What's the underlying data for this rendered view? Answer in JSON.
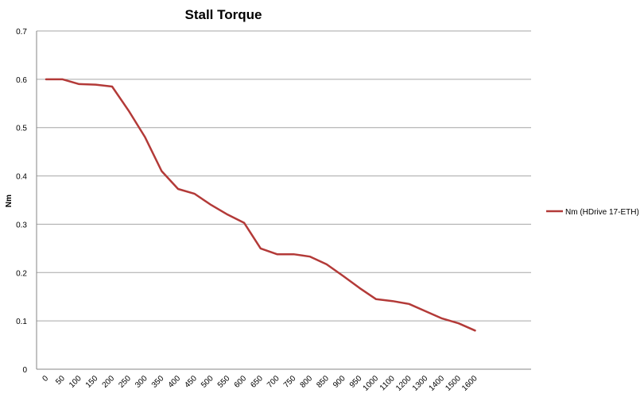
{
  "chart_data": {
    "type": "line",
    "title": "Stall Torque",
    "xlabel": "",
    "ylabel": "Nm",
    "ylim": [
      0,
      0.7
    ],
    "yticks": [
      "0",
      "0.1",
      "0.2",
      "0.3",
      "0.4",
      "0.5",
      "0.6",
      "0.7"
    ],
    "grid": true,
    "legend_position": "right",
    "categories": [
      "0",
      "50",
      "100",
      "150",
      "200",
      "250",
      "300",
      "350",
      "400",
      "450",
      "500",
      "550",
      "600",
      "650",
      "700",
      "750",
      "800",
      "850",
      "900",
      "950",
      "1000",
      "1100",
      "1200",
      "1300",
      "1400",
      "1500",
      "1600"
    ],
    "series": [
      {
        "name": "Nm (HDrive 17-ETH)",
        "color": "#b33a38",
        "values": [
          0.6,
          0.6,
          0.59,
          0.589,
          0.585,
          0.535,
          0.48,
          0.41,
          0.373,
          0.363,
          0.34,
          0.32,
          0.303,
          0.25,
          0.238,
          0.238,
          0.233,
          0.217,
          0.193,
          0.168,
          0.145,
          0.141,
          0.135,
          0.12,
          0.105,
          0.095,
          0.08
        ]
      }
    ],
    "colors": {
      "gridline": "#a6a6a6",
      "axis": "#868686"
    }
  }
}
